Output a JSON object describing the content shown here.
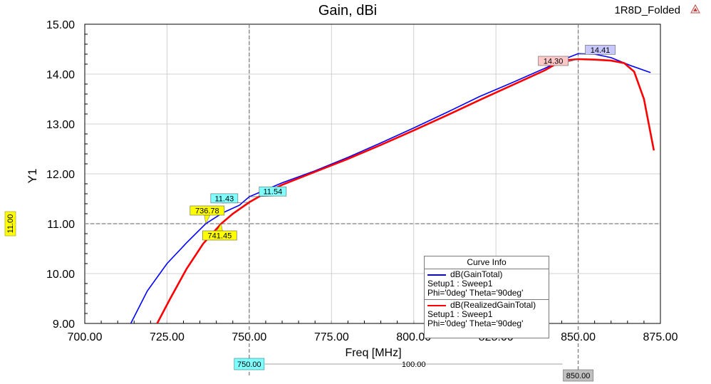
{
  "chart_data": {
    "type": "line",
    "title": "Gain, dBi",
    "project_label": "1R8D_Folded",
    "xlabel": "Freq [MHz]",
    "ylabel": "Y1",
    "xlim": [
      700,
      875
    ],
    "ylim": [
      9,
      15
    ],
    "xticks": [
      "700.00",
      "725.00",
      "750.00",
      "775.00",
      "800.00",
      "825.00",
      "850.00",
      "875.00"
    ],
    "yticks": [
      "9.00",
      "10.00",
      "11.00",
      "12.00",
      "13.00",
      "14.00",
      "15.00"
    ],
    "x_tick_values": [
      700,
      725,
      750,
      775,
      800,
      825,
      850,
      875
    ],
    "y_tick_values": [
      9,
      10,
      11,
      12,
      13,
      14,
      15
    ],
    "grid": true,
    "series": [
      {
        "name": "dB(GainTotal)",
        "color": "#0000ff",
        "x": [
          714,
          719,
          725,
          731,
          736.78,
          742,
          747,
          750,
          755,
          760,
          770,
          780,
          790,
          800,
          810,
          820,
          830,
          840,
          845,
          850,
          855,
          860,
          866,
          872
        ],
        "y": [
          9.0,
          9.65,
          10.2,
          10.62,
          11.0,
          11.22,
          11.37,
          11.54,
          11.68,
          11.82,
          12.06,
          12.33,
          12.62,
          12.92,
          13.23,
          13.55,
          13.83,
          14.12,
          14.28,
          14.41,
          14.4,
          14.33,
          14.17,
          14.03
        ]
      },
      {
        "name": "dB(RealizedGainTotal)",
        "color": "#ff0000",
        "x": [
          722,
          726,
          731,
          736,
          741.45,
          745,
          750,
          755,
          760,
          770,
          780,
          790,
          800,
          810,
          820,
          830,
          840,
          845,
          850,
          855,
          860,
          864,
          867,
          870,
          873
        ],
        "y": [
          9.0,
          9.5,
          10.1,
          10.6,
          11.0,
          11.2,
          11.43,
          11.62,
          11.78,
          12.04,
          12.3,
          12.58,
          12.87,
          13.17,
          13.48,
          13.78,
          14.08,
          14.27,
          14.3,
          14.29,
          14.27,
          14.22,
          14.05,
          13.5,
          12.47
        ]
      }
    ],
    "markers": [
      {
        "label": "11.54",
        "x": 750,
        "y": 11.54,
        "bg": "#80ffff"
      },
      {
        "label": "11.43",
        "x": 750,
        "y": 11.43,
        "bg": "#80ffff"
      },
      {
        "label": "736.78",
        "x": 736.78,
        "y": 11.0,
        "bg": "#ffff00"
      },
      {
        "label": "741.45",
        "x": 741.45,
        "y": 11.0,
        "bg": "#ffff00"
      },
      {
        "label": "14.41",
        "x": 850,
        "y": 14.41,
        "bg": "#c8c8ff"
      },
      {
        "label": "14.30",
        "x": 850,
        "y": 14.3,
        "bg": "#ffc8c8"
      }
    ],
    "y_cursor": {
      "label": "11.00",
      "value": 11.0,
      "bg": "#ffff00"
    },
    "x_cursors": [
      {
        "label": "750.00",
        "value": 750,
        "bg": "#80ffff"
      },
      {
        "label": "850.00",
        "value": 850,
        "bg": "#c0c0c0"
      }
    ],
    "delta_label": "100.00",
    "legend": {
      "title": "Curve Info",
      "placement": "bottom-right",
      "entries": [
        {
          "name": "dB(GainTotal)",
          "color": "#0000ff",
          "line1": "Setup1 : Sweep1",
          "line2": "Phi='0deg' Theta='90deg'"
        },
        {
          "name": "dB(RealizedGainTotal)",
          "color": "#ff0000",
          "line1": "Setup1 : Sweep1",
          "line2": "Phi='0deg' Theta='90deg'"
        }
      ]
    }
  }
}
